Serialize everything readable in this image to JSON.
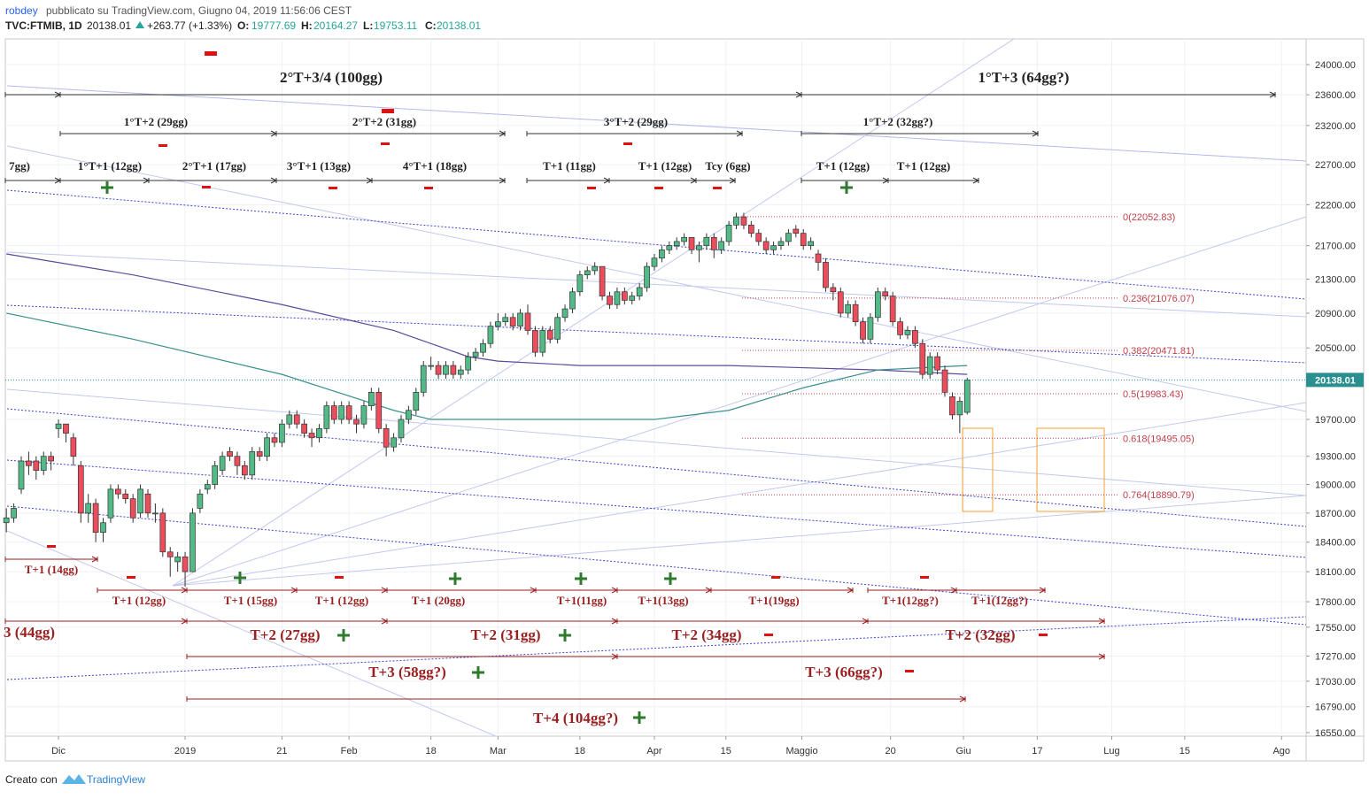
{
  "chart_data": {
    "type": "candlestick",
    "header": {
      "author": "robdey",
      "published": "pubblicato su TradingView.com, Giugno 04, 2019 11:56:06 CEST",
      "symbol": "TVC:FTMIB, 1D",
      "price": "20138.01",
      "change": "+263.77 (+1.33%)",
      "open_label": "O:",
      "open": "19777.69",
      "high_label": "H:",
      "high": "20164.27",
      "low_label": "L:",
      "low": "19753.11",
      "close_label": "C:",
      "close": "20138.01"
    },
    "footer": {
      "created": "Creato con",
      "brand": "TradingView"
    },
    "log_scale": true,
    "grid": true,
    "up_color": "#53b987",
    "down_color": "#eb4d5c",
    "xlim": [
      -7.14,
      167.5
    ],
    "ylim": [
      16517,
      24345
    ],
    "xticks": [
      {
        "value": 0,
        "label": "Dic"
      },
      {
        "value": 17,
        "label": "2019"
      },
      {
        "value": 30,
        "label": "21"
      },
      {
        "value": 39,
        "label": "Feb"
      },
      {
        "value": 50,
        "label": "18"
      },
      {
        "value": 59,
        "label": "Mar"
      },
      {
        "value": 70,
        "label": "18"
      },
      {
        "value": 80,
        "label": "Apr"
      },
      {
        "value": 89.6,
        "label": "15"
      },
      {
        "value": 99.8,
        "label": "Maggio"
      },
      {
        "value": 111.7,
        "label": "20"
      },
      {
        "value": 121.5,
        "label": "Giu"
      },
      {
        "value": 131.4,
        "label": "17"
      },
      {
        "value": 141.4,
        "label": "Lug"
      },
      {
        "value": 151.2,
        "label": "15"
      },
      {
        "value": 164.2,
        "label": "Ago"
      }
    ],
    "yticks": [
      {
        "value": 24000,
        "label": "24000.00"
      },
      {
        "value": 23600,
        "label": "23600.00"
      },
      {
        "value": 23200,
        "label": "23200.00"
      },
      {
        "value": 22700,
        "label": "22700.00"
      },
      {
        "value": 22200,
        "label": "22200.00"
      },
      {
        "value": 21700,
        "label": "21700.00"
      },
      {
        "value": 21300,
        "label": "21300.00"
      },
      {
        "value": 20900,
        "label": "20900.00"
      },
      {
        "value": 20500,
        "label": "20500.00"
      },
      {
        "value": 19700,
        "label": "19700.00"
      },
      {
        "value": 19300,
        "label": "19300.00"
      },
      {
        "value": 19000,
        "label": "19000.00"
      },
      {
        "value": 18700,
        "label": "18700.00"
      },
      {
        "value": 18400,
        "label": "18400.00"
      },
      {
        "value": 18100,
        "label": "18100.00"
      },
      {
        "value": 17800,
        "label": "17800.00"
      },
      {
        "value": 17550,
        "label": "17550.00"
      },
      {
        "value": 17270,
        "label": "17270.00"
      },
      {
        "value": 17030,
        "label": "17030.00"
      },
      {
        "value": 16790,
        "label": "16790.00"
      },
      {
        "value": 16550,
        "label": "16550.00"
      }
    ],
    "x": [
      -7,
      -6,
      -5,
      -4,
      -3,
      -2,
      -1,
      0,
      1,
      2,
      3,
      4,
      5,
      6,
      7,
      8,
      9,
      10,
      11,
      12,
      13,
      14,
      15,
      16,
      17,
      18,
      19,
      20,
      21,
      22,
      23,
      24,
      25,
      26,
      27,
      28,
      29,
      30,
      31,
      32,
      33,
      34,
      35,
      36,
      37,
      38,
      39,
      40,
      41,
      42,
      43,
      44,
      45,
      46,
      47,
      48,
      49,
      50,
      51,
      52,
      53,
      54,
      55,
      56,
      57,
      58,
      59,
      60,
      61,
      62,
      63,
      64,
      65,
      66,
      67,
      68,
      69,
      70,
      71,
      72,
      73,
      74,
      75,
      76,
      77,
      78,
      79,
      80,
      81,
      82,
      83,
      84,
      85,
      86,
      87,
      88,
      89,
      90,
      91,
      92,
      93,
      94,
      95,
      96,
      97,
      98,
      99,
      100,
      101,
      102,
      103,
      104,
      105,
      106,
      107,
      108,
      109,
      110,
      111,
      112,
      113,
      114,
      115,
      116,
      117,
      118,
      119,
      120,
      121,
      122
    ],
    "ohlc": [
      [
        18600,
        18750,
        18500,
        18650
      ],
      [
        18650,
        18800,
        18600,
        18750
      ],
      [
        18950,
        19300,
        18900,
        19250
      ],
      [
        19250,
        19350,
        19100,
        19200
      ],
      [
        19250,
        19300,
        19050,
        19150
      ],
      [
        19150,
        19350,
        19100,
        19300
      ],
      [
        19300,
        19350,
        19150,
        19250
      ],
      [
        19600,
        19700,
        19500,
        19650
      ],
      [
        19650,
        19650,
        19450,
        19550
      ],
      [
        19500,
        19550,
        19200,
        19300
      ],
      [
        19200,
        19250,
        18600,
        18700
      ],
      [
        18700,
        18900,
        18600,
        18800
      ],
      [
        18800,
        18850,
        18400,
        18500
      ],
      [
        18500,
        18650,
        18400,
        18600
      ],
      [
        18650,
        19000,
        18600,
        18950
      ],
      [
        18950,
        19000,
        18850,
        18900
      ],
      [
        18900,
        18950,
        18800,
        18850
      ],
      [
        18850,
        18900,
        18600,
        18650
      ],
      [
        18700,
        19000,
        18650,
        18950
      ],
      [
        18900,
        18950,
        18650,
        18700
      ],
      [
        18700,
        18800,
        18600,
        18700
      ],
      [
        18700,
        18750,
        18250,
        18300
      ],
      [
        18300,
        18350,
        18050,
        18250
      ],
      [
        18200,
        18300,
        18100,
        18250
      ],
      [
        18250,
        18300,
        17950,
        18100
      ],
      [
        18100,
        18750,
        18100,
        18700
      ],
      [
        18750,
        18950,
        18700,
        18900
      ],
      [
        18950,
        19050,
        18900,
        19000
      ],
      [
        19000,
        19250,
        18950,
        19200
      ],
      [
        19150,
        19350,
        19100,
        19300
      ],
      [
        19350,
        19400,
        19250,
        19300
      ],
      [
        19300,
        19350,
        19100,
        19200
      ],
      [
        19200,
        19250,
        19050,
        19100
      ],
      [
        19100,
        19400,
        19050,
        19350
      ],
      [
        19350,
        19400,
        19250,
        19300
      ],
      [
        19300,
        19550,
        19250,
        19500
      ],
      [
        19500,
        19550,
        19400,
        19450
      ],
      [
        19450,
        19700,
        19400,
        19650
      ],
      [
        19650,
        19800,
        19600,
        19750
      ],
      [
        19750,
        19800,
        19600,
        19650
      ],
      [
        19650,
        19700,
        19500,
        19550
      ],
      [
        19550,
        19600,
        19400,
        19500
      ],
      [
        19500,
        19650,
        19450,
        19600
      ],
      [
        19600,
        19900,
        19550,
        19850
      ],
      [
        19850,
        19900,
        19650,
        19700
      ],
      [
        19700,
        19900,
        19650,
        19850
      ],
      [
        19850,
        19900,
        19650,
        19700
      ],
      [
        19700,
        19750,
        19550,
        19650
      ],
      [
        19650,
        19900,
        19600,
        19850
      ],
      [
        19850,
        20050,
        19800,
        20000
      ],
      [
        20000,
        20050,
        19550,
        19600
      ],
      [
        19600,
        19650,
        19300,
        19400
      ],
      [
        19400,
        19550,
        19350,
        19500
      ],
      [
        19500,
        19750,
        19450,
        19700
      ],
      [
        19700,
        19850,
        19650,
        19800
      ],
      [
        19800,
        20050,
        19750,
        20000
      ],
      [
        20000,
        20350,
        19950,
        20300
      ],
      [
        20300,
        20400,
        20250,
        20300
      ],
      [
        20300,
        20350,
        20150,
        20200
      ],
      [
        20200,
        20350,
        20150,
        20300
      ],
      [
        20300,
        20350,
        20150,
        20200
      ],
      [
        20200,
        20300,
        20150,
        20250
      ],
      [
        20250,
        20450,
        20200,
        20400
      ],
      [
        20400,
        20500,
        20350,
        20450
      ],
      [
        20450,
        20600,
        20400,
        20550
      ],
      [
        20550,
        20800,
        20500,
        20750
      ],
      [
        20750,
        20900,
        20700,
        20800
      ],
      [
        20800,
        20900,
        20750,
        20850
      ],
      [
        20850,
        20900,
        20700,
        20750
      ],
      [
        20750,
        20950,
        20700,
        20900
      ],
      [
        20900,
        21000,
        20650,
        20700
      ],
      [
        20700,
        20750,
        20400,
        20450
      ],
      [
        20450,
        20750,
        20400,
        20700
      ],
      [
        20700,
        20750,
        20550,
        20600
      ],
      [
        20600,
        20900,
        20550,
        20850
      ],
      [
        20850,
        21000,
        20800,
        20950
      ],
      [
        20950,
        21200,
        20900,
        21150
      ],
      [
        21150,
        21400,
        21100,
        21350
      ],
      [
        21350,
        21450,
        21300,
        21400
      ],
      [
        21400,
        21500,
        21350,
        21450
      ],
      [
        21450,
        21450,
        21050,
        21100
      ],
      [
        21100,
        21150,
        20950,
        21000
      ],
      [
        21000,
        21200,
        20950,
        21150
      ],
      [
        21150,
        21200,
        21000,
        21050
      ],
      [
        21050,
        21150,
        21000,
        21100
      ],
      [
        21100,
        21250,
        21050,
        21200
      ],
      [
        21200,
        21500,
        21150,
        21450
      ],
      [
        21450,
        21600,
        21400,
        21550
      ],
      [
        21550,
        21700,
        21500,
        21650
      ],
      [
        21650,
        21750,
        21600,
        21700
      ],
      [
        21700,
        21800,
        21650,
        21750
      ],
      [
        21750,
        21850,
        21700,
        21800
      ],
      [
        21800,
        21800,
        21600,
        21650
      ],
      [
        21650,
        21750,
        21500,
        21700
      ],
      [
        21700,
        21850,
        21650,
        21800
      ],
      [
        21800,
        21850,
        21550,
        21650
      ],
      [
        21650,
        21800,
        21600,
        21750
      ],
      [
        21750,
        22000,
        21700,
        21950
      ],
      [
        21950,
        22100,
        21900,
        22050
      ],
      [
        22050,
        22100,
        21900,
        21950
      ],
      [
        21950,
        22000,
        21800,
        21850
      ],
      [
        21850,
        21900,
        21700,
        21750
      ],
      [
        21750,
        21800,
        21600,
        21650
      ],
      [
        21650,
        21750,
        21600,
        21700
      ],
      [
        21700,
        21800,
        21650,
        21750
      ],
      [
        21750,
        21900,
        21700,
        21850
      ],
      [
        21900,
        21950,
        21800,
        21850
      ],
      [
        21850,
        21900,
        21650,
        21700
      ],
      [
        21700,
        21800,
        21650,
        21750
      ],
      [
        21600,
        21650,
        21400,
        21500
      ],
      [
        21500,
        21550,
        21150,
        21200
      ],
      [
        21200,
        21250,
        21050,
        21150
      ],
      [
        21150,
        21200,
        20850,
        20900
      ],
      [
        20900,
        21050,
        20850,
        21000
      ],
      [
        21000,
        21050,
        20750,
        20800
      ],
      [
        20800,
        20850,
        20550,
        20600
      ],
      [
        20600,
        20900,
        20550,
        20850
      ],
      [
        20850,
        21200,
        20800,
        21150
      ],
      [
        21150,
        21200,
        21050,
        21100
      ],
      [
        21100,
        21150,
        20750,
        20800
      ],
      [
        20800,
        20850,
        20600,
        20650
      ],
      [
        20650,
        20750,
        20600,
        20700
      ],
      [
        20700,
        20750,
        20500,
        20550
      ],
      [
        20550,
        20600,
        20150,
        20200
      ],
      [
        20200,
        20450,
        20150,
        20400
      ],
      [
        20400,
        20450,
        20200,
        20250
      ],
      [
        20250,
        20300,
        19950,
        20000
      ],
      [
        19950,
        20000,
        19700,
        19750
      ],
      [
        19750,
        19950,
        19550,
        19900
      ],
      [
        19777.69,
        20164.27,
        19753.11,
        20138.01
      ]
    ],
    "series": [
      {
        "color": "#5b4a9a",
        "x": [
          -7,
          10,
          30,
          45,
          55,
          59,
          70,
          90,
          110,
          122
        ],
        "values": [
          21600,
          21350,
          21000,
          20700,
          20400,
          20350,
          20300,
          20300,
          20250,
          20200
        ]
      },
      {
        "color": "#3a8f8f",
        "x": [
          -7,
          10,
          30,
          45,
          50,
          70,
          80,
          90,
          100,
          110,
          122
        ],
        "values": [
          20900,
          20600,
          20200,
          19800,
          19700,
          19700,
          19700,
          19800,
          20050,
          20250,
          20300
        ]
      }
    ],
    "fib": [
      {
        "value": 22052.83,
        "label": "0(22052.83)"
      },
      {
        "value": 21076.07,
        "label": "0.236(21076.07)"
      },
      {
        "value": 20471.81,
        "label": "0.382(20471.81)"
      },
      {
        "value": 19983.43,
        "label": "0.5(19983.43)"
      },
      {
        "value": 19495.05,
        "label": "0.618(19495.05)"
      },
      {
        "value": 18890.79,
        "label": "0.764(18890.79)"
      }
    ],
    "annotations": [
      "2°T+3/4 (100gg)",
      "1°T+3 (64gg?)",
      "1°T+2 (29gg)",
      "2°T+2 (31gg)",
      "3°T+2 (29gg)",
      "1°T+2 (32gg?)",
      "7gg)",
      "1°T+1 (12gg)",
      "2°T+1 (17gg)",
      "3°T+1 (13gg)",
      "4°T+1 (18gg)",
      "T+1 (11gg)",
      "T+1 (12gg)",
      "Tcy (6gg)",
      "T+1 (12gg)",
      "T+1 (12gg)",
      "T+1 (14gg)",
      "T+1 (12gg)",
      "T+1 (15gg)",
      "T+1 (12gg)",
      "T+1 (20gg)",
      "T+1(11gg)",
      "T+1(13gg)",
      "T+1(19gg)",
      "T+1(12gg?)",
      "T+1(12gg?)",
      "3 (44gg)",
      "T+2 (27gg)",
      "T+2 (31gg)",
      "T+2 (34gg)",
      "T+2 (32gg)",
      "T+3 (58gg?)",
      "T+3 (66gg?)",
      "T+4 (104gg?)"
    ]
  }
}
